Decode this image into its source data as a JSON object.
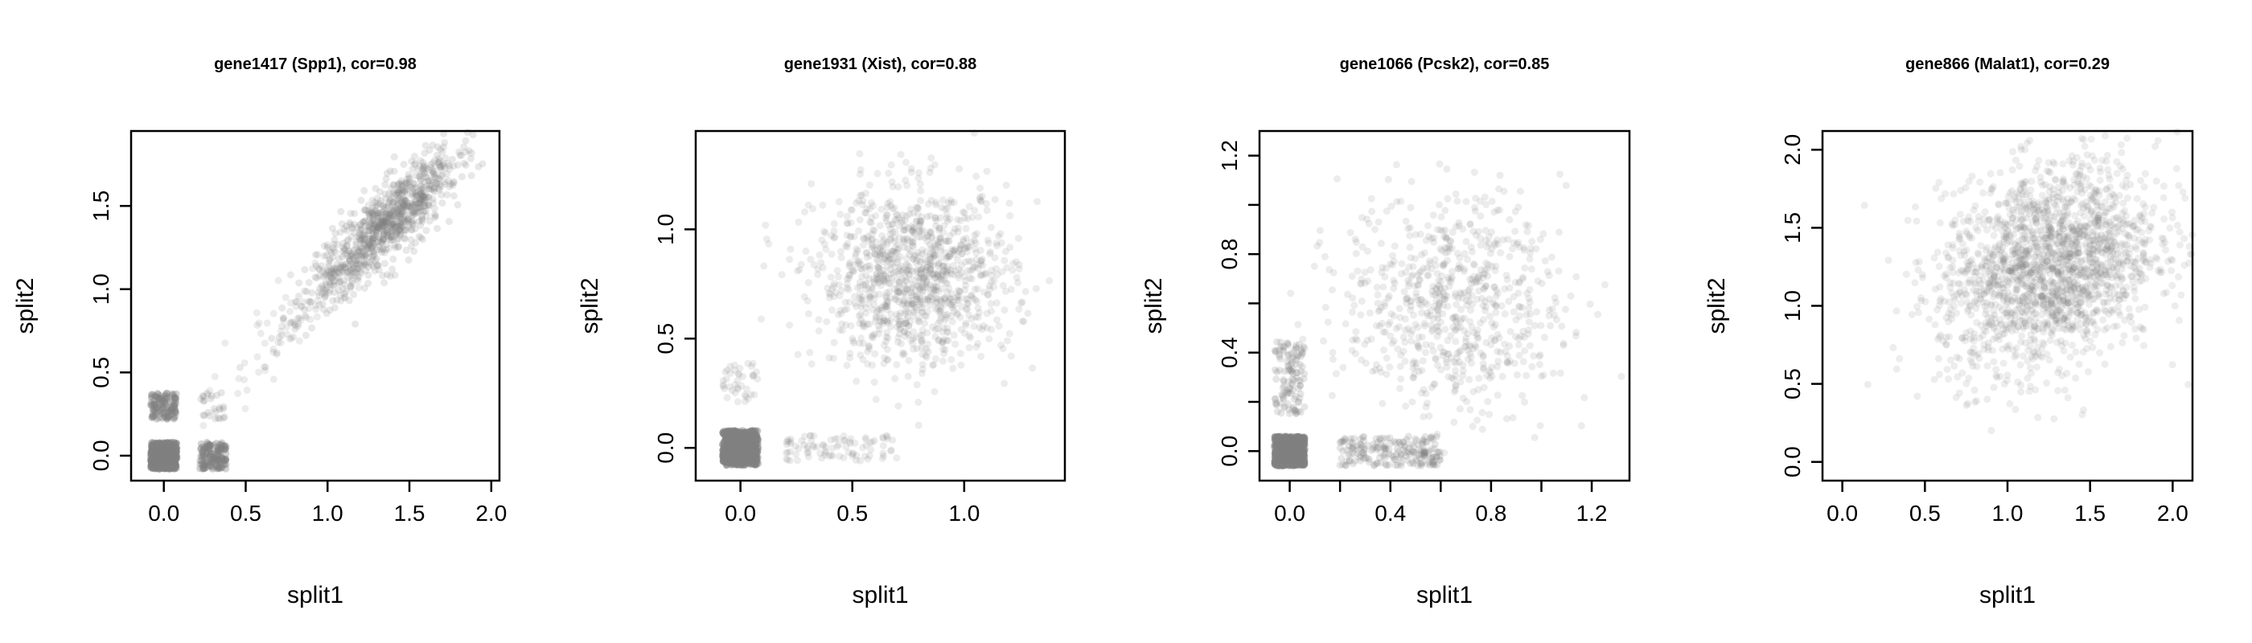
{
  "point_color": "#808080",
  "chart_data": [
    {
      "type": "scatter",
      "title": "gene1417 (Spp1), cor=0.98",
      "xlabel": "split1",
      "ylabel": "split2",
      "xlim": [
        -0.2,
        2.05
      ],
      "ylim": [
        -0.15,
        1.95
      ],
      "xticks": [
        0.0,
        0.5,
        1.0,
        1.5,
        2.0
      ],
      "xtick_labels": [
        "0.0",
        "0.5",
        "1.0",
        "1.5",
        "2.0"
      ],
      "yticks": [
        0.0,
        0.5,
        1.0,
        1.5
      ],
      "ytick_labels": [
        "0.0",
        "0.5",
        "1.0",
        "1.5"
      ],
      "clusters": [
        {
          "cx": 0.0,
          "cy": 0.0,
          "sx": 0.08,
          "sy": 0.08,
          "n": 500,
          "alpha": 0.45,
          "shape": "box"
        },
        {
          "cx": 0.0,
          "cy": 0.3,
          "sx": 0.08,
          "sy": 0.08,
          "n": 120,
          "alpha": 0.35,
          "shape": "box"
        },
        {
          "cx": 0.3,
          "cy": 0.0,
          "sx": 0.08,
          "sy": 0.08,
          "n": 150,
          "alpha": 0.35,
          "shape": "box"
        },
        {
          "cx": 0.3,
          "cy": 0.3,
          "sx": 0.08,
          "sy": 0.08,
          "n": 25,
          "alpha": 0.2,
          "shape": "box"
        },
        {
          "cx": 1.35,
          "cy": 1.38,
          "sx": 0.22,
          "sy": 0.22,
          "n": 900,
          "alpha": 0.18,
          "shape": "diag",
          "rho": 0.85
        },
        {
          "cx": 0.8,
          "cy": 0.82,
          "sx": 0.25,
          "sy": 0.25,
          "n": 100,
          "alpha": 0.15,
          "shape": "diag",
          "rho": 0.9
        }
      ]
    },
    {
      "type": "scatter",
      "title": "gene1931 (Xist), cor=0.88",
      "xlabel": "split1",
      "ylabel": "split2",
      "xlim": [
        -0.2,
        1.45
      ],
      "ylim": [
        -0.15,
        1.45
      ],
      "xticks": [
        0.0,
        0.5,
        1.0
      ],
      "xtick_labels": [
        "0.0",
        "0.5",
        "1.0"
      ],
      "yticks": [
        0.0,
        0.5,
        1.0
      ],
      "ytick_labels": [
        "0.0",
        "0.5",
        "1.0"
      ],
      "clusters": [
        {
          "cx": 0.0,
          "cy": 0.0,
          "sx": 0.08,
          "sy": 0.08,
          "n": 550,
          "alpha": 0.45,
          "shape": "box"
        },
        {
          "cx": 0.78,
          "cy": 0.78,
          "sx": 0.22,
          "sy": 0.2,
          "n": 1100,
          "alpha": 0.15,
          "shape": "gauss"
        },
        {
          "cx": 0.0,
          "cy": 0.3,
          "sx": 0.08,
          "sy": 0.1,
          "n": 40,
          "alpha": 0.15,
          "shape": "box"
        },
        {
          "cx": 0.45,
          "cy": 0.0,
          "sx": 0.25,
          "sy": 0.06,
          "n": 90,
          "alpha": 0.15,
          "shape": "box"
        }
      ]
    },
    {
      "type": "scatter",
      "title": "gene1066 (Pcsk2), cor=0.85",
      "xlabel": "split1",
      "ylabel": "split2",
      "xlim": [
        -0.12,
        1.35
      ],
      "ylim": [
        -0.12,
        1.3
      ],
      "xticks": [
        0.0,
        0.2,
        0.4,
        0.6,
        0.8,
        1.0,
        1.2
      ],
      "xtick_labels": [
        "0.0",
        "",
        "0.4",
        "",
        "0.8",
        "",
        "1.2"
      ],
      "yticks": [
        0.0,
        0.2,
        0.4,
        0.6,
        0.8,
        1.0,
        1.2
      ],
      "ytick_labels": [
        "0.0",
        "",
        "0.4",
        "",
        "0.8",
        "",
        "1.2"
      ],
      "clusters": [
        {
          "cx": 0.0,
          "cy": 0.0,
          "sx": 0.06,
          "sy": 0.06,
          "n": 650,
          "alpha": 0.45,
          "shape": "box"
        },
        {
          "cx": 0.0,
          "cy": 0.3,
          "sx": 0.06,
          "sy": 0.15,
          "n": 120,
          "alpha": 0.2,
          "shape": "box"
        },
        {
          "cx": 0.4,
          "cy": 0.0,
          "sx": 0.2,
          "sy": 0.06,
          "n": 200,
          "alpha": 0.2,
          "shape": "box"
        },
        {
          "cx": 0.65,
          "cy": 0.6,
          "sx": 0.22,
          "sy": 0.22,
          "n": 700,
          "alpha": 0.15,
          "shape": "gauss"
        }
      ]
    },
    {
      "type": "scatter",
      "title": "gene866 (Malat1), cor=0.29",
      "xlabel": "split1",
      "ylabel": "split2",
      "xlim": [
        -0.12,
        2.12
      ],
      "ylim": [
        -0.12,
        2.12
      ],
      "xticks": [
        0.0,
        0.5,
        1.0,
        1.5,
        2.0
      ],
      "xtick_labels": [
        "0.0",
        "0.5",
        "1.0",
        "1.5",
        "2.0"
      ],
      "yticks": [
        0.0,
        0.5,
        1.0,
        1.5,
        2.0
      ],
      "ytick_labels": [
        "0.0",
        "0.5",
        "1.0",
        "1.5",
        "2.0"
      ],
      "clusters": [
        {
          "cx": 1.25,
          "cy": 1.25,
          "sx": 0.33,
          "sy": 0.33,
          "n": 1900,
          "alpha": 0.14,
          "shape": "diag",
          "rho": 0.25
        }
      ]
    }
  ]
}
